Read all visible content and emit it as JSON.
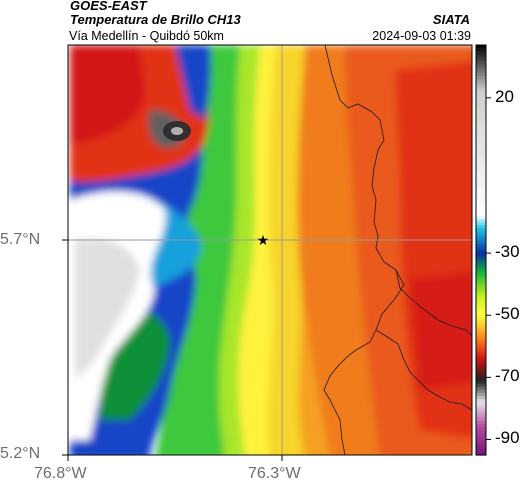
{
  "header": {
    "satellite": "GOES-EAST",
    "product": "Temperatura de Brillo CH13",
    "route": "Vía Medellín - Quibdó 50km",
    "agency": "SIATA",
    "datetime": "2024-09-03 01:39"
  },
  "map": {
    "lat_ticks": [
      "5.7°N",
      "5.2°N"
    ],
    "lon_ticks": [
      "76.8°W",
      "76.3°W"
    ],
    "extent": {
      "lon": [
        -76.8,
        -76.3
      ],
      "lat": [
        5.2,
        5.7
      ]
    },
    "marker": {
      "symbol": "★",
      "type": "star"
    },
    "gridline_color": "#9a9a9a"
  },
  "colorbar": {
    "ticks": [
      "20",
      "-30",
      "-50",
      "-70",
      "-90"
    ],
    "tick_values": [
      20,
      -30,
      -50,
      -70,
      -90
    ],
    "range": [
      -95,
      37
    ],
    "stops": [
      {
        "v": 37,
        "c": "#000000"
      },
      {
        "v": 22,
        "c": "#cfcfcf"
      },
      {
        "v": -18,
        "c": "#ffffff"
      },
      {
        "v": -22,
        "c": "#1ec8e6"
      },
      {
        "v": -30,
        "c": "#0a2fa8"
      },
      {
        "v": -36,
        "c": "#0fb43c"
      },
      {
        "v": -44,
        "c": "#c8f01e"
      },
      {
        "v": -50,
        "c": "#ffff3c"
      },
      {
        "v": -57,
        "c": "#ff8c1e"
      },
      {
        "v": -64,
        "c": "#d21414"
      },
      {
        "v": -71,
        "c": "#202020"
      },
      {
        "v": -78,
        "c": "#e6e6e6"
      },
      {
        "v": -86,
        "c": "#b44ba0"
      },
      {
        "v": -95,
        "c": "#781478"
      }
    ]
  }
}
